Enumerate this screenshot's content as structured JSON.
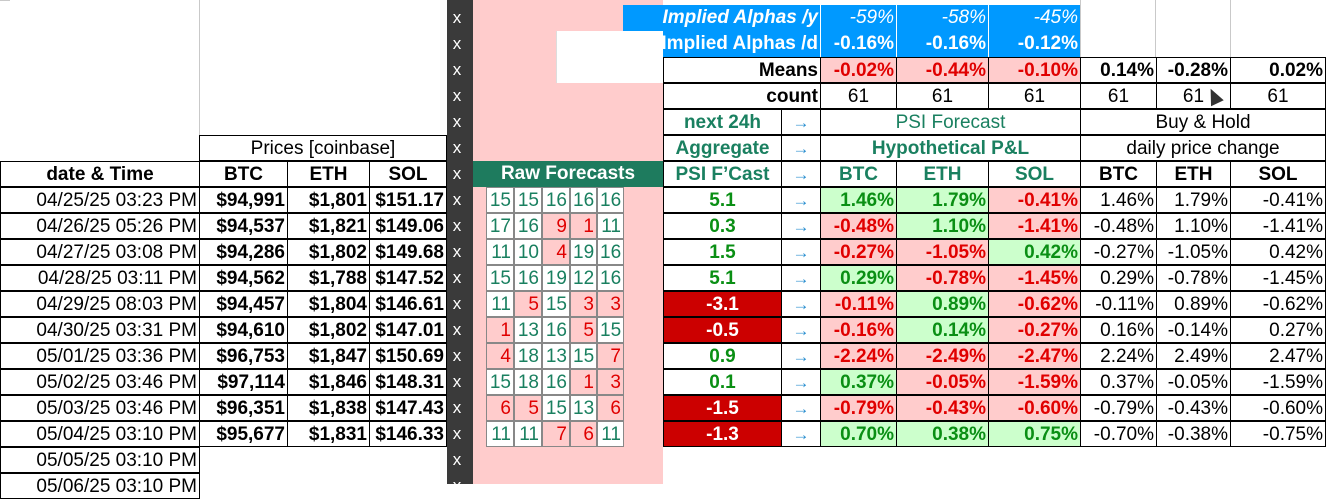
{
  "colors": {
    "blue_header": "#0099ff",
    "teal_header": "#1e7b5e",
    "pink_fill": "#ffcccc",
    "green_fill": "#ccffcc",
    "dark_red_fill": "#cc0000",
    "x_column": "#3a3a3a",
    "green_text": "#0a8f14",
    "red_text": "#e00000",
    "teal_text": "#1a8060"
  },
  "implied": {
    "alphas_y_label": "Implied Alphas /y",
    "alphas_y": [
      "-59%",
      "-58%",
      "-45%"
    ],
    "alphas_d_label": "Implied Alphas /d",
    "alphas_d": [
      "-0.16%",
      "-0.16%",
      "-0.12%"
    ]
  },
  "means": {
    "label": "Means",
    "pnl": [
      "-0.02%",
      "-0.44%",
      "-0.10%"
    ],
    "hold": [
      "0.14%",
      "-0.28%",
      "0.02%"
    ]
  },
  "count": {
    "label": "count",
    "pnl": [
      "61",
      "61",
      "61"
    ],
    "hold": [
      "61",
      "61",
      "61"
    ]
  },
  "headers": {
    "prices": "Prices [coinbase]",
    "date_time": "date & Time",
    "assets": [
      "BTC",
      "ETH",
      "SOL"
    ],
    "raw_forecasts": "Raw Forecasts",
    "next_24h": "next 24h",
    "aggregate": "Aggregate",
    "psi_fcast": "PSI F’Cast",
    "psi_forecast": "PSI Forecast",
    "hypothetical_pnl": "Hypothetical P&L",
    "buy_hold": "Buy & Hold",
    "daily_price_change": "daily price change",
    "arrow": "→",
    "x_marker": "x"
  },
  "rows": [
    {
      "date": "04/25/25 03:23 PM",
      "btc": "$94,991",
      "eth": "$1,801",
      "sol": "$151.17",
      "raw": [
        "15",
        "15",
        "16",
        "16",
        "16"
      ],
      "psi": "5.1",
      "pnl": [
        "1.46%",
        "1.79%",
        "-0.41%"
      ],
      "hold": [
        "1.46%",
        "1.79%",
        "-0.41%"
      ]
    },
    {
      "date": "04/26/25 05:26 PM",
      "btc": "$94,537",
      "eth": "$1,821",
      "sol": "$149.06",
      "raw": [
        "17",
        "16",
        "9",
        "1",
        "11"
      ],
      "psi": "0.3",
      "pnl": [
        "-0.48%",
        "1.10%",
        "-1.41%"
      ],
      "hold": [
        "-0.48%",
        "1.10%",
        "-1.41%"
      ]
    },
    {
      "date": "04/27/25 03:08 PM",
      "btc": "$94,286",
      "eth": "$1,802",
      "sol": "$149.68",
      "raw": [
        "11",
        "10",
        "4",
        "19",
        "16"
      ],
      "psi": "1.5",
      "pnl": [
        "-0.27%",
        "-1.05%",
        "0.42%"
      ],
      "hold": [
        "-0.27%",
        "-1.05%",
        "0.42%"
      ]
    },
    {
      "date": "04/28/25 03:11 PM",
      "btc": "$94,562",
      "eth": "$1,788",
      "sol": "$147.52",
      "raw": [
        "15",
        "16",
        "19",
        "12",
        "16"
      ],
      "psi": "5.1",
      "pnl": [
        "0.29%",
        "-0.78%",
        "-1.45%"
      ],
      "hold": [
        "0.29%",
        "-0.78%",
        "-1.45%"
      ]
    },
    {
      "date": "04/29/25 08:03 PM",
      "btc": "$94,457",
      "eth": "$1,804",
      "sol": "$146.61",
      "raw": [
        "11",
        "5",
        "15",
        "3",
        "3"
      ],
      "psi": "-3.1",
      "pnl": [
        "-0.11%",
        "0.89%",
        "-0.62%"
      ],
      "hold": [
        "-0.11%",
        "0.89%",
        "-0.62%"
      ]
    },
    {
      "date": "04/30/25 03:31 PM",
      "btc": "$94,610",
      "eth": "$1,802",
      "sol": "$147.01",
      "raw": [
        "1",
        "13",
        "16",
        "5",
        "15"
      ],
      "psi": "-0.5",
      "pnl": [
        "-0.16%",
        "0.14%",
        "-0.27%"
      ],
      "hold": [
        "0.16%",
        "-0.14%",
        "0.27%"
      ]
    },
    {
      "date": "05/01/25 03:36 PM",
      "btc": "$96,753",
      "eth": "$1,847",
      "sol": "$150.69",
      "raw": [
        "4",
        "18",
        "13",
        "15",
        "7"
      ],
      "psi": "0.9",
      "pnl": [
        "-2.24%",
        "-2.49%",
        "-2.47%"
      ],
      "hold": [
        "2.24%",
        "2.49%",
        "2.47%"
      ]
    },
    {
      "date": "05/02/25 03:46 PM",
      "btc": "$97,114",
      "eth": "$1,846",
      "sol": "$148.31",
      "raw": [
        "15",
        "18",
        "16",
        "1",
        "3"
      ],
      "psi": "0.1",
      "pnl": [
        "0.37%",
        "-0.05%",
        "-1.59%"
      ],
      "hold": [
        "0.37%",
        "-0.05%",
        "-1.59%"
      ]
    },
    {
      "date": "05/03/25 03:46 PM",
      "btc": "$96,351",
      "eth": "$1,838",
      "sol": "$147.43",
      "raw": [
        "6",
        "5",
        "15",
        "13",
        "6"
      ],
      "psi": "-1.5",
      "pnl": [
        "-0.79%",
        "-0.43%",
        "-0.60%"
      ],
      "hold": [
        "-0.79%",
        "-0.43%",
        "-0.60%"
      ]
    },
    {
      "date": "05/04/25 03:10 PM",
      "btc": "$95,677",
      "eth": "$1,831",
      "sol": "$146.33",
      "raw": [
        "11",
        "11",
        "7",
        "6",
        "11"
      ],
      "psi": "-1.3",
      "pnl": [
        "0.70%",
        "0.38%",
        "0.75%"
      ],
      "hold": [
        "-0.70%",
        "-0.38%",
        "-0.75%"
      ]
    }
  ],
  "extra_dates": [
    "05/05/25 03:10 PM",
    "05/06/25 03:10 PM"
  ]
}
